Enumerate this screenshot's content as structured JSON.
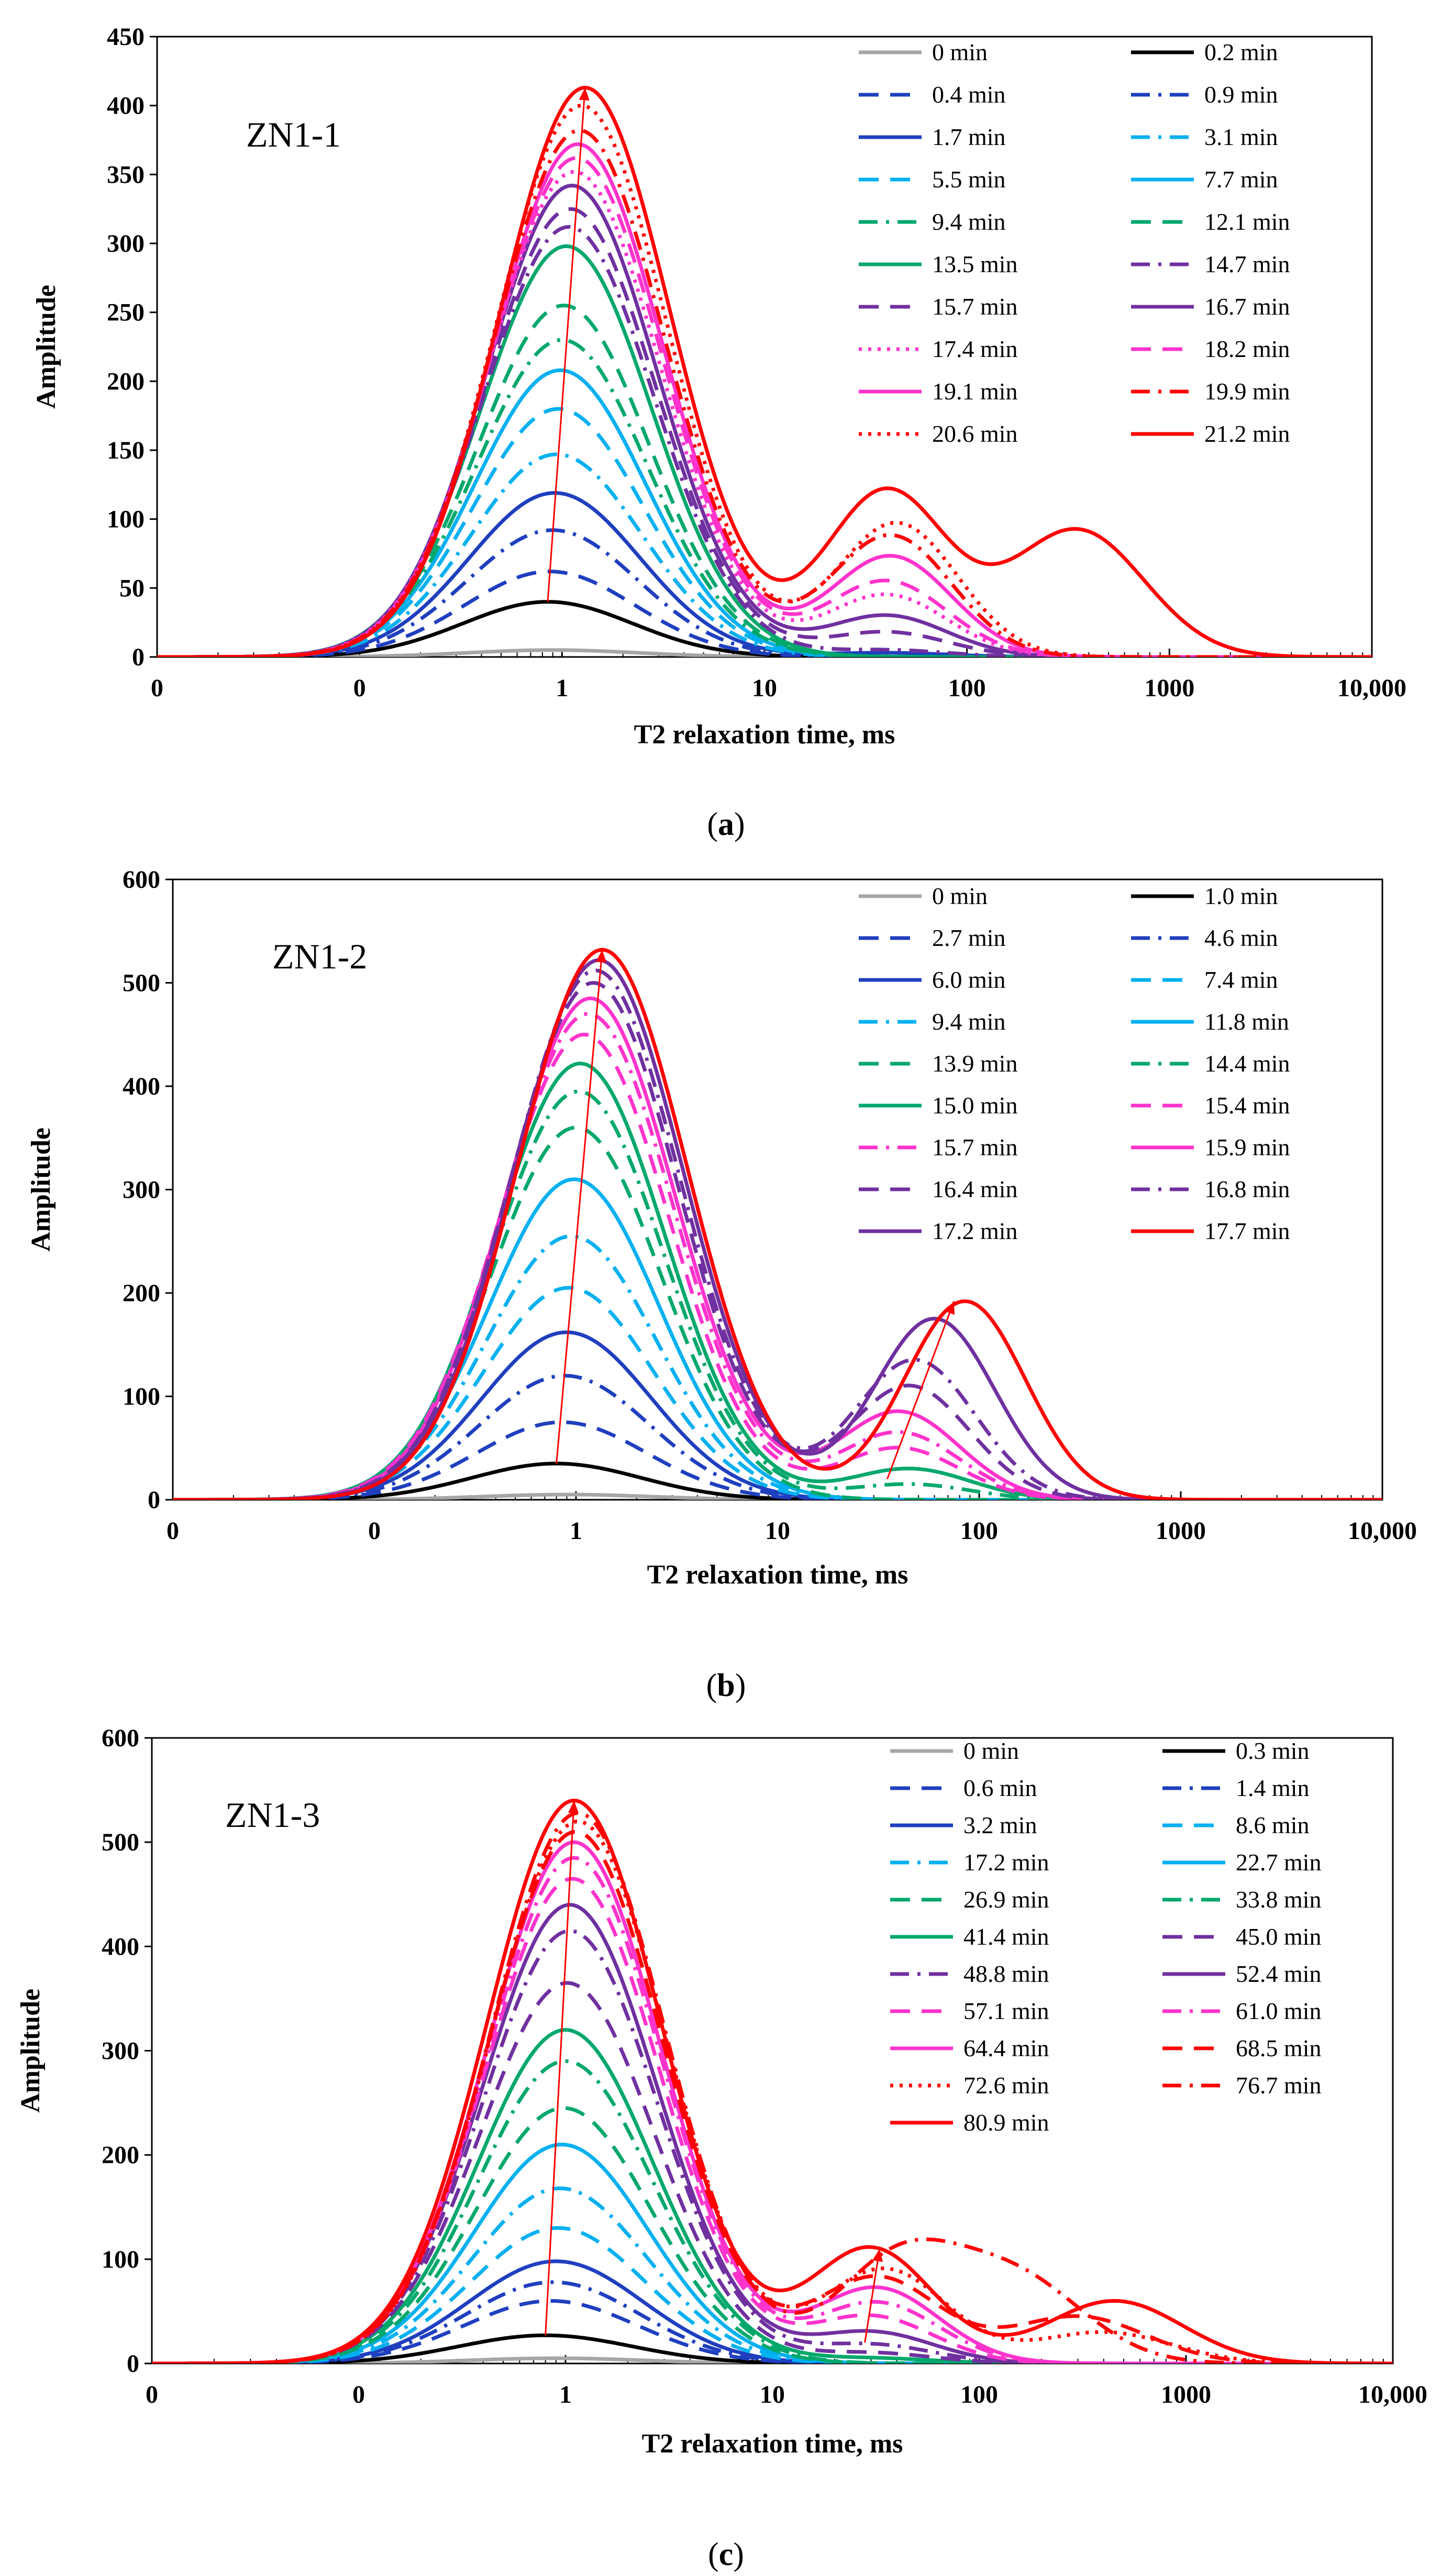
{
  "figure": {
    "captions": [
      {
        "open": "(",
        "letter": "a",
        "close": ")"
      },
      {
        "open": "(",
        "letter": "b",
        "close": ")"
      },
      {
        "open": "(",
        "letter": "c",
        "close": ")"
      }
    ]
  },
  "chart_data": [
    {
      "type": "line",
      "panel": "ZN1-1",
      "xlabel": "T2 relaxation time, ms",
      "ylabel": "Amplitude",
      "xscale": "log",
      "xlim": [
        0.01,
        10000
      ],
      "ylim": [
        0,
        450
      ],
      "yticks": [
        0,
        50,
        100,
        150,
        200,
        250,
        300,
        350,
        400,
        450
      ],
      "xtick_values": [
        0.01,
        0.1,
        1,
        10,
        100,
        1000,
        10000
      ],
      "xtick_labels": [
        "0",
        "0",
        "1",
        "10",
        "100",
        "1000",
        "10,000"
      ],
      "legend_position": "upper-right",
      "series": [
        {
          "name": "0 min",
          "color": "#a6a6a6",
          "dash": "solid",
          "peak1": 5,
          "t1": 0.9,
          "peak2": 0,
          "t2": 40
        },
        {
          "name": "0.2 min",
          "color": "#000000",
          "dash": "solid",
          "peak1": 40,
          "t1": 0.85,
          "peak2": 0,
          "t2": 40
        },
        {
          "name": "0.4 min",
          "color": "#1f3fbf",
          "dash": "dash",
          "peak1": 62,
          "t1": 0.87,
          "peak2": 0,
          "t2": 40
        },
        {
          "name": "0.9 min",
          "color": "#1f3fbf",
          "dash": "dashdot",
          "peak1": 92,
          "t1": 0.9,
          "peak2": 0,
          "t2": 40
        },
        {
          "name": "1.7 min",
          "color": "#1f3fbf",
          "dash": "solid",
          "peak1": 119,
          "t1": 0.92,
          "peak2": 3,
          "t2": 40
        },
        {
          "name": "3.1 min",
          "color": "#00b0f0",
          "dash": "dashdot",
          "peak1": 147,
          "t1": 0.94,
          "peak2": 0,
          "t2": 40
        },
        {
          "name": "5.5 min",
          "color": "#00b0f0",
          "dash": "dash",
          "peak1": 180,
          "t1": 0.96,
          "peak2": 0,
          "t2": 40
        },
        {
          "name": "7.7 min",
          "color": "#00b0f0",
          "dash": "solid",
          "peak1": 208,
          "t1": 0.98,
          "peak2": 0,
          "t2": 40
        },
        {
          "name": "9.4 min",
          "color": "#00a86b",
          "dash": "dashdot",
          "peak1": 230,
          "t1": 1.0,
          "peak2": 0,
          "t2": 40
        },
        {
          "name": "12.1 min",
          "color": "#00a86b",
          "dash": "dash",
          "peak1": 255,
          "t1": 1.02,
          "peak2": 0,
          "t2": 40
        },
        {
          "name": "13.5 min",
          "color": "#00a86b",
          "dash": "solid",
          "peak1": 298,
          "t1": 1.05,
          "peak2": 0,
          "t2": 40
        },
        {
          "name": "14.7 min",
          "color": "#7030a0",
          "dash": "dashdot",
          "peak1": 312,
          "t1": 1.08,
          "peak2": 5,
          "t2": 40
        },
        {
          "name": "15.7 min",
          "color": "#7030a0",
          "dash": "dash",
          "peak1": 325,
          "t1": 1.1,
          "peak2": 18,
          "t2": 40
        },
        {
          "name": "16.7 min",
          "color": "#7030a0",
          "dash": "solid",
          "peak1": 342,
          "t1": 1.12,
          "peak2": 30,
          "t2": 40
        },
        {
          "name": "17.4 min",
          "color": "#ff33cc",
          "dash": "dot",
          "peak1": 352,
          "t1": 1.15,
          "peak2": 45,
          "t2": 40
        },
        {
          "name": "18.2 min",
          "color": "#ff33cc",
          "dash": "dash",
          "peak1": 362,
          "t1": 1.18,
          "peak2": 55,
          "t2": 40
        },
        {
          "name": "19.1 min",
          "color": "#ff33cc",
          "dash": "solid",
          "peak1": 372,
          "t1": 1.2,
          "peak2": 73,
          "t2": 42
        },
        {
          "name": "19.9 min",
          "color": "#ff0000",
          "dash": "dashdot",
          "peak1": 382,
          "t1": 1.22,
          "peak2": 88,
          "t2": 42
        },
        {
          "name": "20.6 min",
          "color": "#ff0000",
          "dash": "dot",
          "peak1": 400,
          "t1": 1.25,
          "peak2": 97,
          "t2": 45
        },
        {
          "name": "21.2 min",
          "color": "#ff0000",
          "dash": "solid",
          "peak1": 413,
          "t1": 1.3,
          "peak2": 120,
          "t2": 40,
          "peak3": 92,
          "t3": 350
        }
      ],
      "annotation": {
        "type": "arrow",
        "from": {
          "x": 0.85,
          "y": 40
        },
        "to": {
          "x": 1.3,
          "y": 413
        }
      }
    },
    {
      "type": "line",
      "panel": "ZN1-2",
      "xlabel": "T2 relaxation time, ms",
      "ylabel": "Amplitude",
      "xscale": "log",
      "xlim": [
        0.01,
        10000
      ],
      "ylim": [
        0,
        600
      ],
      "yticks": [
        0,
        100,
        200,
        300,
        400,
        500,
        600
      ],
      "xtick_values": [
        0.01,
        0.1,
        1,
        10,
        100,
        1000,
        10000
      ],
      "xtick_labels": [
        "0",
        "0",
        "1",
        "10",
        "100",
        "1000",
        "10,000"
      ],
      "legend_position": "upper-right",
      "series": [
        {
          "name": "0 min",
          "color": "#a6a6a6",
          "dash": "solid",
          "peak1": 5,
          "t1": 0.9,
          "peak2": 0,
          "t2": 40
        },
        {
          "name": "1.0 min",
          "color": "#000000",
          "dash": "solid",
          "peak1": 35,
          "t1": 0.8,
          "peak2": 0,
          "t2": 40
        },
        {
          "name": "2.7 min",
          "color": "#1f3fbf",
          "dash": "dash",
          "peak1": 75,
          "t1": 0.85,
          "peak2": 0,
          "t2": 40
        },
        {
          "name": "4.6 min",
          "color": "#1f3fbf",
          "dash": "dashdot",
          "peak1": 120,
          "t1": 0.88,
          "peak2": 0,
          "t2": 40
        },
        {
          "name": "6.0 min",
          "color": "#1f3fbf",
          "dash": "solid",
          "peak1": 162,
          "t1": 0.9,
          "peak2": 0,
          "t2": 40
        },
        {
          "name": "7.4 min",
          "color": "#00b0f0",
          "dash": "dash",
          "peak1": 205,
          "t1": 0.92,
          "peak2": 0,
          "t2": 40
        },
        {
          "name": "9.4 min",
          "color": "#00b0f0",
          "dash": "dashdot",
          "peak1": 255,
          "t1": 0.95,
          "peak2": 0,
          "t2": 40
        },
        {
          "name": "11.8 min",
          "color": "#00b0f0",
          "dash": "solid",
          "peak1": 310,
          "t1": 0.98,
          "peak2": 0,
          "t2": 40
        },
        {
          "name": "13.9 min",
          "color": "#00a86b",
          "dash": "dash",
          "peak1": 360,
          "t1": 1.0,
          "peak2": 0,
          "t2": 40
        },
        {
          "name": "14.4 min",
          "color": "#00a86b",
          "dash": "dashdot",
          "peak1": 395,
          "t1": 1.03,
          "peak2": 15,
          "t2": 45
        },
        {
          "name": "15.0 min",
          "color": "#00a86b",
          "dash": "solid",
          "peak1": 422,
          "t1": 1.05,
          "peak2": 30,
          "t2": 45
        },
        {
          "name": "15.4 min",
          "color": "#ff33cc",
          "dash": "dash",
          "peak1": 450,
          "t1": 1.1,
          "peak2": 50,
          "t2": 40
        },
        {
          "name": "15.7 min",
          "color": "#ff33cc",
          "dash": "dashdot",
          "peak1": 470,
          "t1": 1.15,
          "peak2": 65,
          "t2": 40
        },
        {
          "name": "15.9 min",
          "color": "#ff33cc",
          "dash": "solid",
          "peak1": 485,
          "t1": 1.18,
          "peak2": 85,
          "t2": 40
        },
        {
          "name": "16.4 min",
          "color": "#7030a0",
          "dash": "dash",
          "peak1": 500,
          "t1": 1.22,
          "peak2": 110,
          "t2": 45
        },
        {
          "name": "16.8 min",
          "color": "#7030a0",
          "dash": "dashdot",
          "peak1": 512,
          "t1": 1.25,
          "peak2": 135,
          "t2": 48
        },
        {
          "name": "17.2 min",
          "color": "#7030a0",
          "dash": "solid",
          "peak1": 522,
          "t1": 1.3,
          "peak2": 175,
          "t2": 60
        },
        {
          "name": "17.7 min",
          "color": "#ff0000",
          "dash": "solid",
          "peak1": 532,
          "t1": 1.35,
          "peak2": 192,
          "t2": 85
        }
      ],
      "annotations": [
        {
          "type": "arrow",
          "from": {
            "x": 0.8,
            "y": 35
          },
          "to": {
            "x": 1.35,
            "y": 532
          }
        },
        {
          "type": "arrow",
          "from": {
            "x": 35,
            "y": 20
          },
          "to": {
            "x": 75,
            "y": 192
          }
        }
      ]
    },
    {
      "type": "line",
      "panel": "ZN1-3",
      "xlabel": "T2 relaxation time, ms",
      "ylabel": "Amplitude",
      "xscale": "log",
      "xlim": [
        0.01,
        10000
      ],
      "ylim": [
        0,
        600
      ],
      "yticks": [
        0,
        100,
        200,
        300,
        400,
        500,
        600
      ],
      "xtick_values": [
        0.01,
        0.1,
        1,
        10,
        100,
        1000,
        10000
      ],
      "xtick_labels": [
        "0",
        "0",
        "1",
        "10",
        "100",
        "1000",
        "10,000"
      ],
      "legend_position": "upper-right",
      "series": [
        {
          "name": "0 min",
          "color": "#a6a6a6",
          "dash": "solid",
          "peak1": 5,
          "t1": 0.9,
          "peak2": 0,
          "t2": 30
        },
        {
          "name": "0.3 min",
          "color": "#000000",
          "dash": "solid",
          "peak1": 27,
          "t1": 0.8,
          "peak2": 0,
          "t2": 30
        },
        {
          "name": "0.6 min",
          "color": "#1f3fbf",
          "dash": "dash",
          "peak1": 60,
          "t1": 0.85,
          "peak2": 0,
          "t2": 30
        },
        {
          "name": "1.4 min",
          "color": "#1f3fbf",
          "dash": "dashdot",
          "peak1": 78,
          "t1": 0.87,
          "peak2": 0,
          "t2": 30
        },
        {
          "name": "3.2 min",
          "color": "#1f3fbf",
          "dash": "solid",
          "peak1": 98,
          "t1": 0.9,
          "peak2": 0,
          "t2": 30
        },
        {
          "name": "8.6 min",
          "color": "#00b0f0",
          "dash": "dash",
          "peak1": 130,
          "t1": 0.92,
          "peak2": 0,
          "t2": 30
        },
        {
          "name": "17.2 min",
          "color": "#00b0f0",
          "dash": "dashdot",
          "peak1": 168,
          "t1": 0.94,
          "peak2": 0,
          "t2": 30
        },
        {
          "name": "22.7 min",
          "color": "#00b0f0",
          "dash": "solid",
          "peak1": 210,
          "t1": 0.96,
          "peak2": 0,
          "t2": 30
        },
        {
          "name": "26.9 min",
          "color": "#00a86b",
          "dash": "dash",
          "peak1": 245,
          "t1": 0.98,
          "peak2": 0,
          "t2": 30
        },
        {
          "name": "33.8 min",
          "color": "#00a86b",
          "dash": "dashdot",
          "peak1": 290,
          "t1": 1.0,
          "peak2": 0,
          "t2": 30
        },
        {
          "name": "41.4 min",
          "color": "#00a86b",
          "dash": "solid",
          "peak1": 320,
          "t1": 1.0,
          "peak2": 5,
          "t2": 30
        },
        {
          "name": "45.0 min",
          "color": "#7030a0",
          "dash": "dash",
          "peak1": 365,
          "t1": 1.02,
          "peak2": 10,
          "t2": 30
        },
        {
          "name": "48.8 min",
          "color": "#7030a0",
          "dash": "dashdot",
          "peak1": 415,
          "t1": 1.05,
          "peak2": 18,
          "t2": 30
        },
        {
          "name": "52.4 min",
          "color": "#7030a0",
          "dash": "solid",
          "peak1": 440,
          "t1": 1.05,
          "peak2": 30,
          "t2": 30
        },
        {
          "name": "57.1 min",
          "color": "#ff33cc",
          "dash": "dash",
          "peak1": 465,
          "t1": 1.08,
          "peak2": 45,
          "t2": 30
        },
        {
          "name": "61.0 min",
          "color": "#ff33cc",
          "dash": "dashdot",
          "peak1": 485,
          "t1": 1.1,
          "peak2": 58,
          "t2": 32
        },
        {
          "name": "64.4 min",
          "color": "#ff33cc",
          "dash": "solid",
          "peak1": 500,
          "t1": 1.1,
          "peak2": 72,
          "t2": 32
        },
        {
          "name": "68.5 min",
          "color": "#ff0000",
          "dash": "dash",
          "peak1": 510,
          "t1": 1.12,
          "peak2": 82,
          "t2": 32,
          "peak3": 45,
          "t3": 300
        },
        {
          "name": "72.6 min",
          "color": "#ff0000",
          "dash": "dot",
          "peak1": 520,
          "t1": 1.15,
          "peak2": 90,
          "t2": 35,
          "peak3": 30,
          "t3": 400
        },
        {
          "name": "76.7 min",
          "color": "#ff0000",
          "dash": "dashdot",
          "peak1": 528,
          "t1": 1.15,
          "peak2": 95,
          "t2": 40,
          "peak3": 80,
          "t3": 150
        },
        {
          "name": "80.9 min",
          "color": "#ff0000",
          "dash": "solid",
          "peak1": 540,
          "t1": 1.1,
          "peak2": 110,
          "t2": 30,
          "peak3": 60,
          "t3": 450
        }
      ],
      "annotations": [
        {
          "type": "arrow",
          "from": {
            "x": 0.8,
            "y": 27
          },
          "to": {
            "x": 1.1,
            "y": 540
          }
        },
        {
          "type": "arrow",
          "from": {
            "x": 28,
            "y": 20
          },
          "to": {
            "x": 33,
            "y": 110
          }
        }
      ]
    }
  ]
}
